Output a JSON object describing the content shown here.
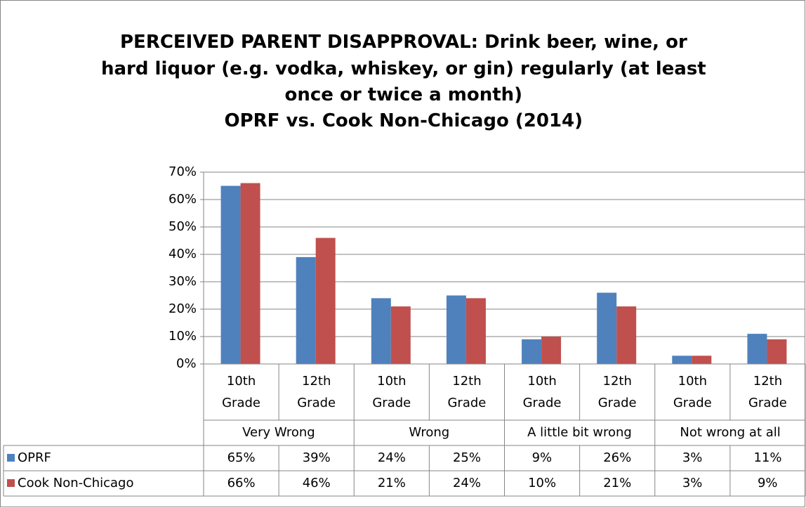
{
  "chart_data": {
    "type": "bar",
    "title": [
      "PERCEIVED PARENT DISAPPROVAL: Drink beer, wine, or",
      "hard liquor (e.g. vodka, whiskey, or gin) regularly (at least",
      "once or twice a month)"
    ],
    "subtitle": "OPRF vs. Cook Non-Chicago (2014)",
    "groups": [
      "Very Wrong",
      "Wrong",
      "A little bit wrong",
      "Not wrong at all"
    ],
    "categories": [
      "10th Grade",
      "12th Grade",
      "10th Grade",
      "12th Grade",
      "10th Grade",
      "12th Grade",
      "10th Grade",
      "12th Grade"
    ],
    "series": [
      {
        "name": "OPRF",
        "color": "#4f81bd",
        "values": [
          65,
          39,
          24,
          25,
          9,
          26,
          3,
          11
        ],
        "value_labels": [
          "65%",
          "39%",
          "24%",
          "25%",
          "9%",
          "26%",
          "3%",
          "11%"
        ]
      },
      {
        "name": "Cook Non-Chicago",
        "color": "#c0504d",
        "values": [
          66,
          46,
          21,
          24,
          10,
          21,
          3,
          9
        ],
        "value_labels": [
          "66%",
          "46%",
          "21%",
          "24%",
          "10%",
          "21%",
          "3%",
          "9%"
        ]
      }
    ],
    "ylim": [
      0,
      70
    ],
    "yticks": [
      {
        "value": 0,
        "label": "0%"
      },
      {
        "value": 10,
        "label": "10%"
      },
      {
        "value": 20,
        "label": "20%"
      },
      {
        "value": 30,
        "label": "30%"
      },
      {
        "value": 40,
        "label": "40%"
      },
      {
        "value": 50,
        "label": "50%"
      },
      {
        "value": 60,
        "label": "60%"
      },
      {
        "value": 70,
        "label": "70%"
      }
    ],
    "grid": true,
    "legend": "data-table"
  }
}
